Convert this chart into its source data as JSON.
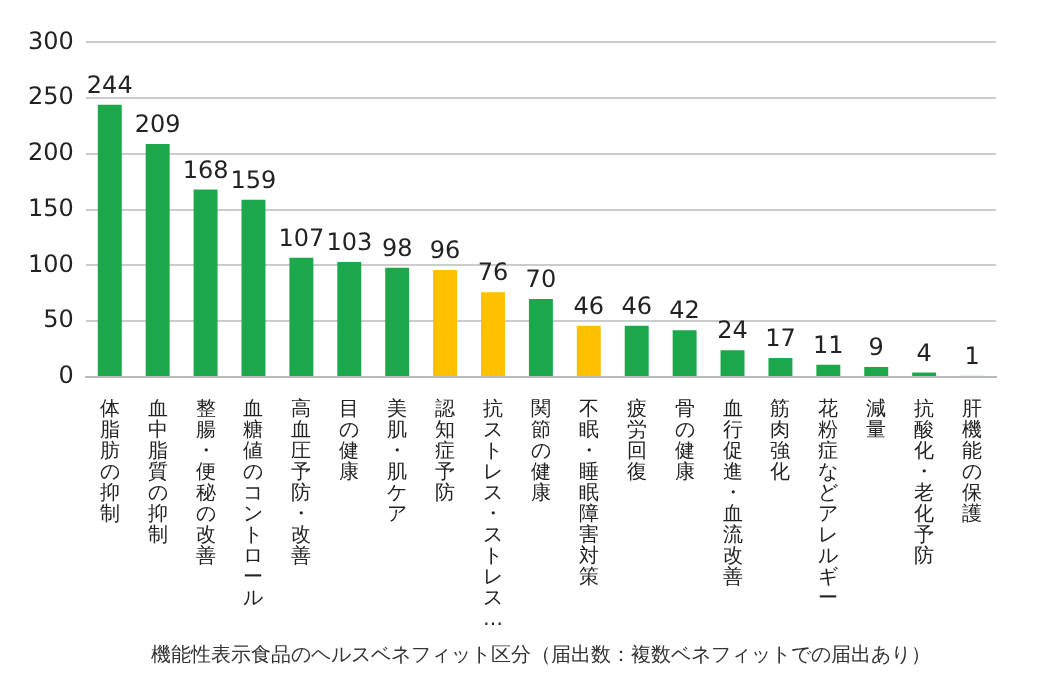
{
  "chart_data": {
    "type": "bar",
    "xlabel": "機能性表示食品のヘルスベネフィット区分（届出数：複数ベネフィットでの届出あり）",
    "categories": [
      "体脂肪の抑制",
      "血中脂質の抑制",
      "整腸・便秘の改善",
      "血糖値のコントロール",
      "高血圧予防・改善",
      "目の健康",
      "美肌・肌ケア",
      "認知症予防",
      "抗ストレス・ストレス…",
      "関節の健康",
      "不眠・睡眠障害対策",
      "疲労回復",
      "骨の健康",
      "血行促進・血流改善",
      "筋肉強化",
      "花粉症などアレルギー",
      "減量",
      "抗酸化・老化予防",
      "肝機能の保護"
    ],
    "values": [
      244,
      209,
      168,
      159,
      107,
      103,
      98,
      96,
      76,
      70,
      46,
      46,
      42,
      24,
      17,
      11,
      9,
      4,
      1
    ],
    "colors": [
      "#1ca84a",
      "#1ca84a",
      "#1ca84a",
      "#1ca84a",
      "#1ca84a",
      "#1ca84a",
      "#1ca84a",
      "#ffc000",
      "#ffc000",
      "#1ca84a",
      "#ffc000",
      "#1ca84a",
      "#1ca84a",
      "#1ca84a",
      "#1ca84a",
      "#1ca84a",
      "#1ca84a",
      "#1ca84a",
      "#1ca84a"
    ],
    "ylim": [
      0,
      300
    ],
    "yticks": [
      0,
      50,
      100,
      150,
      200,
      250,
      300
    ],
    "grid": "y",
    "data_labels": true,
    "legend": false
  }
}
